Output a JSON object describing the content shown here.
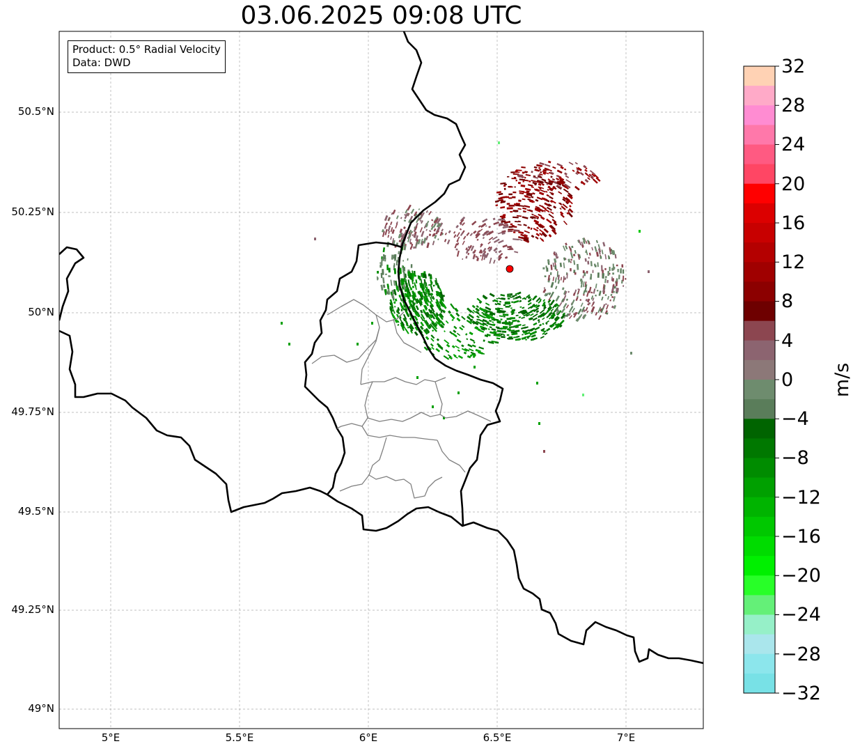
{
  "title": "03.06.2025 09:08 UTC",
  "info": {
    "product": "Product: 0.5° Radial Velocity",
    "data_source": "Data: DWD"
  },
  "axes": {
    "lon_ticks": [
      "5°E",
      "5.5°E",
      "6°E",
      "6.5°E",
      "7°E"
    ],
    "lat_ticks": [
      "50.5°N",
      "50.25°N",
      "50°N",
      "49.75°N",
      "49.5°N",
      "49.25°N",
      "49°N"
    ]
  },
  "colorbar": {
    "unit": "m/s",
    "tick_labels": [
      "32",
      "28",
      "24",
      "20",
      "16",
      "12",
      "8",
      "4",
      "0",
      "−4",
      "−8",
      "−12",
      "−16",
      "−20",
      "−24",
      "−28",
      "−32"
    ],
    "range": [
      -32,
      32
    ],
    "colors_top_to_bottom": [
      "#ffd2b4",
      "#ffaac8",
      "#ff8cd2",
      "#ff78aa",
      "#ff5a82",
      "#ff4664",
      "#ff0000",
      "#dc0000",
      "#c80000",
      "#b40000",
      "#a00000",
      "#8c0000",
      "#6e0000",
      "#8c4650",
      "#8c6470",
      "#8c7878",
      "#6e8c6e",
      "#5a7d5a",
      "#006400",
      "#007800",
      "#008c00",
      "#00a000",
      "#00b400",
      "#00c800",
      "#00dc00",
      "#00f000",
      "#28ff28",
      "#64f078",
      "#96f0c8",
      "#aae6ec",
      "#8ce6ec",
      "#78e1e6"
    ]
  },
  "radar_site_color": "#ff0000"
}
